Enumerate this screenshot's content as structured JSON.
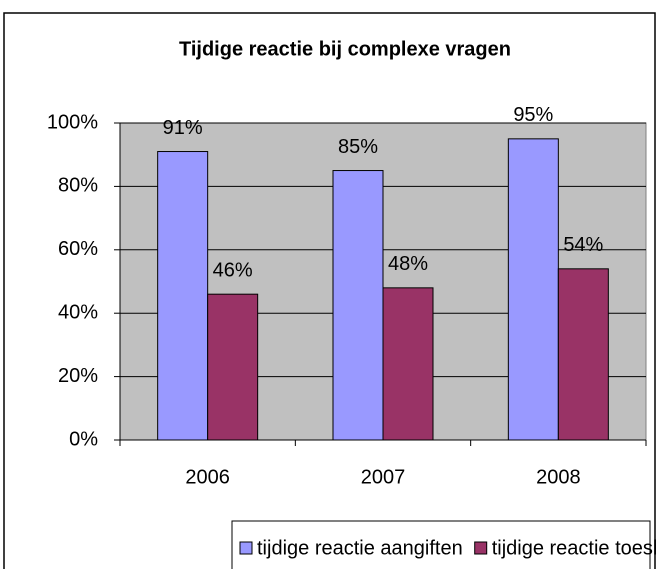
{
  "chart_data": {
    "type": "bar",
    "title": "Tijdige reactie bij complexe vragen",
    "categories": [
      "2006",
      "2007",
      "2008"
    ],
    "series": [
      {
        "name": "tijdige reactie aangiften",
        "color": "#9999ff",
        "values": [
          91,
          85,
          95
        ],
        "value_labels": [
          "91%",
          "85%",
          "95%"
        ]
      },
      {
        "name": "tijdige reactie toeslagen",
        "color": "#993366",
        "values": [
          46,
          48,
          54
        ],
        "value_labels": [
          "46%",
          "48%",
          "54%"
        ]
      }
    ],
    "ylim": [
      0,
      100
    ],
    "yticks": [
      {
        "value": 0,
        "label": "0%"
      },
      {
        "value": 20,
        "label": "20%"
      },
      {
        "value": 40,
        "label": "40%"
      },
      {
        "value": 60,
        "label": "60%"
      },
      {
        "value": 80,
        "label": "80%"
      },
      {
        "value": 100,
        "label": "100%"
      }
    ],
    "grid": true,
    "plot_background": "#c0c0c0",
    "legend": "bottom"
  }
}
